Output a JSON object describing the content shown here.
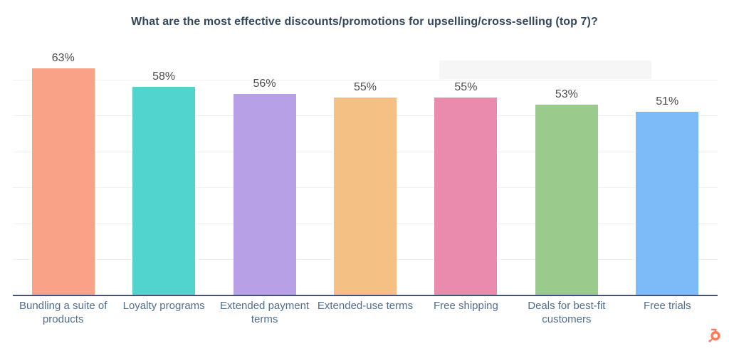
{
  "title": "What are the most effective discounts/promotions for upselling/cross-selling (top 7)?",
  "chart_data": {
    "type": "bar",
    "title": "What are the most effective discounts/promotions for upselling/cross-selling (top 7)?",
    "categories": [
      "Bundling a suite of products",
      "Loyalty programs",
      "Extended payment terms",
      "Extended-use terms",
      "Free shipping",
      "Deals for best-fit customers",
      "Free trials"
    ],
    "values": [
      63,
      58,
      56,
      55,
      55,
      53,
      51
    ],
    "value_labels": [
      "63%",
      "58%",
      "56%",
      "55%",
      "55%",
      "53%",
      "51%"
    ],
    "bar_colors": [
      "#F9A287",
      "#52D4CE",
      "#B7A0E6",
      "#F4C083",
      "#EA8BAE",
      "#9BCB8C",
      "#7DBAF8"
    ],
    "xlabel": "",
    "ylabel": "",
    "ylim": [
      0,
      70
    ],
    "gridlines_percent": [
      10,
      20,
      30,
      40,
      50,
      60
    ],
    "grid": "on",
    "legend_position": "none"
  },
  "branding": {
    "logo": "hubspot-sprocket-icon",
    "logo_color": "#FF7A59"
  },
  "colors": {
    "background": "#FFFFFF",
    "title_text": "#33475B",
    "value_text": "#4C4C4C",
    "category_text": "#516F90",
    "axis_line": "#42527A",
    "gridline": "#F0F0F1",
    "highlight_band": "#F6F6F7"
  }
}
